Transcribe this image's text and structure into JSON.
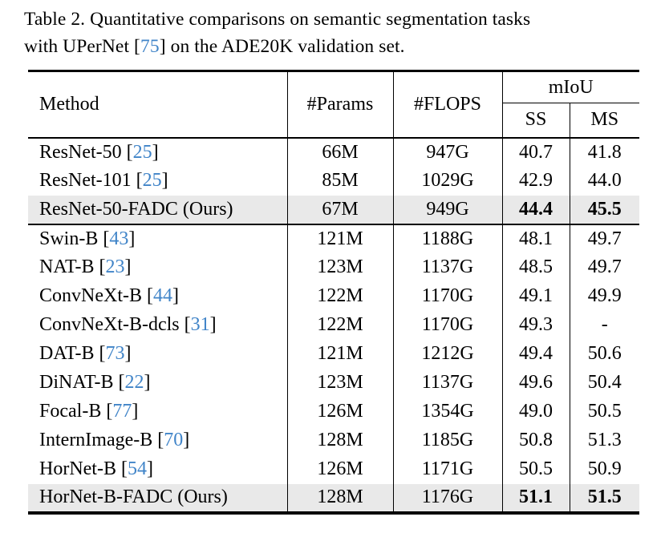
{
  "caption": {
    "line1": "Table 2. Quantitative comparisons on semantic segmentation tasks",
    "line2_pre": "with UPerNet [",
    "cite": "75",
    "line2_post": "] on the ADE20K validation set."
  },
  "colors": {
    "citation_blue": "#4084c8",
    "highlight_gray": "#e9e9e9",
    "text": "#000000"
  },
  "table": {
    "headers": {
      "method": "Method",
      "params": "#Params",
      "flops": "#FLOPS",
      "miou": "mIoU",
      "ss": "SS",
      "ms": "MS"
    },
    "rows": [
      {
        "pre": "ResNet-50 [",
        "cite": "25",
        "post": "]",
        "params": "66M",
        "flops": "947G",
        "ss": "40.7",
        "ms": "41.8"
      },
      {
        "pre": "ResNet-101 [",
        "cite": "25",
        "post": "]",
        "params": "85M",
        "flops": "1029G",
        "ss": "42.9",
        "ms": "44.0"
      },
      {
        "pre": "ResNet-50-FADC (Ours)",
        "params": "67M",
        "flops": "949G",
        "ss": "44.4",
        "ms": "45.5"
      },
      {
        "pre": "Swin-B [",
        "cite": "43",
        "post": "]",
        "params": "121M",
        "flops": "1188G",
        "ss": "48.1",
        "ms": "49.7"
      },
      {
        "pre": "NAT-B [",
        "cite": "23",
        "post": "]",
        "params": "123M",
        "flops": "1137G",
        "ss": "48.5",
        "ms": "49.7"
      },
      {
        "pre": "ConvNeXt-B [",
        "cite": "44",
        "post": "]",
        "params": "122M",
        "flops": "1170G",
        "ss": "49.1",
        "ms": "49.9"
      },
      {
        "pre": "ConvNeXt-B-dcls [",
        "cite": "31",
        "post": "]",
        "params": "122M",
        "flops": "1170G",
        "ss": "49.3",
        "ms": "-"
      },
      {
        "pre": "DAT-B [",
        "cite": "73",
        "post": "]",
        "params": "121M",
        "flops": "1212G",
        "ss": "49.4",
        "ms": "50.6"
      },
      {
        "pre": "DiNAT-B [",
        "cite": "22",
        "post": "]",
        "params": "123M",
        "flops": "1137G",
        "ss": "49.6",
        "ms": "50.4"
      },
      {
        "pre": "Focal-B [",
        "cite": "77",
        "post": "]",
        "params": "126M",
        "flops": "1354G",
        "ss": "49.0",
        "ms": "50.5"
      },
      {
        "pre": "InternImage-B [",
        "cite": "70",
        "post": "]",
        "params": "128M",
        "flops": "1185G",
        "ss": "50.8",
        "ms": "51.3"
      },
      {
        "pre": "HorNet-B [",
        "cite": "54",
        "post": "]",
        "params": "126M",
        "flops": "1171G",
        "ss": "50.5",
        "ms": "50.9"
      },
      {
        "pre": "HorNet-B-FADC (Ours)",
        "params": "128M",
        "flops": "1176G",
        "ss": "51.1",
        "ms": "51.5"
      }
    ]
  }
}
